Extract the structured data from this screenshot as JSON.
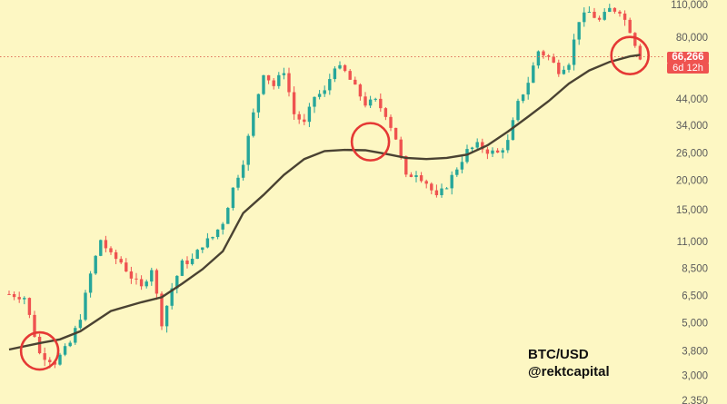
{
  "colors": {
    "background": "#fdf7c3",
    "up": "#26a69a",
    "down": "#ef5350",
    "moving_average": "#4a4232",
    "highlight_circle": "#e53935",
    "price_line": "#e0725a"
  },
  "current_price": {
    "value": "66,266",
    "countdown": "6d 12h"
  },
  "credit": {
    "pair": "BTC/USD",
    "handle": "@rektcapital"
  },
  "chart_data": {
    "type": "candlestick",
    "title": "",
    "scale": "log",
    "timeframe": "weekly",
    "grid": false,
    "ylim": [
      2200,
      125000
    ],
    "y_ticks": [
      "110,000",
      "80,000",
      "44,000",
      "34,000",
      "26,000",
      "20,000",
      "15,000",
      "11,000",
      "8,500",
      "6,500",
      "5,000",
      "3,800",
      "3,000",
      "2,350"
    ],
    "close_path": [
      [
        0,
        6600
      ],
      [
        3,
        6400
      ],
      [
        6,
        3700
      ],
      [
        9,
        3400
      ],
      [
        12,
        4100
      ],
      [
        14,
        5300
      ],
      [
        16,
        8000
      ],
      [
        18,
        11200
      ],
      [
        20,
        9600
      ],
      [
        22,
        9000
      ],
      [
        24,
        7800
      ],
      [
        26,
        7000
      ],
      [
        28,
        8500
      ],
      [
        30,
        5000
      ],
      [
        32,
        7000
      ],
      [
        34,
        8900
      ],
      [
        36,
        9200
      ],
      [
        38,
        10700
      ],
      [
        40,
        11500
      ],
      [
        42,
        13300
      ],
      [
        44,
        18400
      ],
      [
        46,
        24000
      ],
      [
        48,
        38000
      ],
      [
        50,
        57000
      ],
      [
        52,
        50000
      ],
      [
        54,
        58000
      ],
      [
        56,
        38000
      ],
      [
        58,
        34500
      ],
      [
        60,
        45000
      ],
      [
        62,
        47000
      ],
      [
        64,
        61000
      ],
      [
        66,
        57000
      ],
      [
        68,
        49000
      ],
      [
        70,
        42000
      ],
      [
        72,
        43000
      ],
      [
        74,
        38000
      ],
      [
        76,
        30000
      ],
      [
        78,
        20500
      ],
      [
        80,
        21500
      ],
      [
        82,
        19500
      ],
      [
        84,
        16800
      ],
      [
        86,
        19000
      ],
      [
        88,
        22500
      ],
      [
        90,
        26500
      ],
      [
        92,
        28000
      ],
      [
        94,
        26500
      ],
      [
        96,
        25900
      ],
      [
        98,
        29000
      ],
      [
        100,
        42000
      ],
      [
        102,
        52000
      ],
      [
        104,
        70000
      ],
      [
        106,
        66000
      ],
      [
        108,
        58000
      ],
      [
        110,
        63000
      ],
      [
        112,
        95000
      ],
      [
        114,
        102000
      ],
      [
        116,
        94000
      ],
      [
        118,
        105000
      ],
      [
        120,
        104000
      ],
      [
        122,
        86000
      ],
      [
        124,
        66266
      ]
    ],
    "moving_average": [
      [
        0,
        3850
      ],
      [
        6,
        4100
      ],
      [
        10,
        4250
      ],
      [
        14,
        4600
      ],
      [
        20,
        5600
      ],
      [
        26,
        6100
      ],
      [
        30,
        6400
      ],
      [
        34,
        7300
      ],
      [
        38,
        8400
      ],
      [
        42,
        10000
      ],
      [
        46,
        14500
      ],
      [
        50,
        17300
      ],
      [
        54,
        21000
      ],
      [
        58,
        24500
      ],
      [
        62,
        26500
      ],
      [
        66,
        26800
      ],
      [
        70,
        26700
      ],
      [
        74,
        25800
      ],
      [
        78,
        24800
      ],
      [
        82,
        24500
      ],
      [
        86,
        24800
      ],
      [
        90,
        25600
      ],
      [
        94,
        28000
      ],
      [
        98,
        32000
      ],
      [
        102,
        37000
      ],
      [
        106,
        43000
      ],
      [
        110,
        51000
      ],
      [
        114,
        58000
      ],
      [
        118,
        63000
      ],
      [
        122,
        66500
      ],
      [
        124,
        67500
      ]
    ],
    "annotations": [
      {
        "type": "circle",
        "at_index": 6,
        "price": 3800
      },
      {
        "type": "circle",
        "at_index": 71,
        "price": 29000
      },
      {
        "type": "circle",
        "at_index": 122,
        "price": 67000
      }
    ]
  }
}
